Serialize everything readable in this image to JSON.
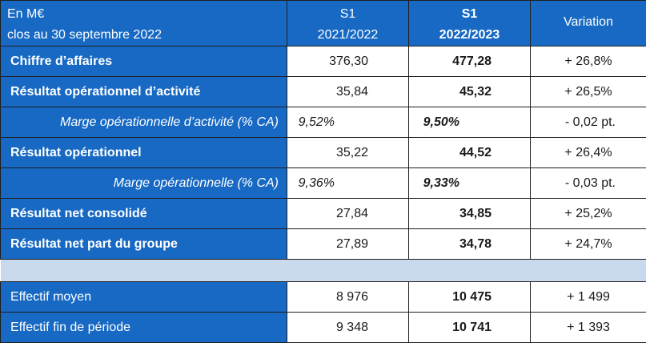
{
  "header": {
    "label_line1": "En M€",
    "label_line2": "clos au 30 septembre 2022",
    "col1_line1": "S1",
    "col1_line2": "2021/2022",
    "col2_line1": "S1",
    "col2_line2": "2022/2023",
    "col3": "Variation"
  },
  "rows": [
    {
      "label": "Chiffre d’affaires",
      "v1": "376,30",
      "v2": "477,28",
      "var": "+ 26,8%"
    },
    {
      "label": "Résultat opérationnel d’activité",
      "v1": "35,84",
      "v2": "45,32",
      "var": "+ 26,5%"
    },
    {
      "label": "Marge opérationnelle d’activité (% CA)",
      "v1": "9,52%",
      "v2": "9,50%",
      "var": "- 0,02 pt."
    },
    {
      "label": "Résultat opérationnel",
      "v1": "35,22",
      "v2": "44,52",
      "var": "+ 26,4%"
    },
    {
      "label": "Marge opérationnelle (% CA)",
      "v1": "9,36%",
      "v2": "9,33%",
      "var": "- 0,03 pt."
    },
    {
      "label": "Résultat net consolidé",
      "v1": "27,84",
      "v2": "34,85",
      "var": "+ 25,2%"
    },
    {
      "label": "Résultat net part du groupe",
      "v1": "27,89",
      "v2": "34,78",
      "var": "+ 24,7%"
    }
  ],
  "staff": [
    {
      "label": "Effectif moyen",
      "v1": "8 976",
      "v2": "10 475",
      "var": "+ 1 499"
    },
    {
      "label": "Effectif fin de période",
      "v1": "9 348",
      "v2": "10 741",
      "var": "+ 1 393"
    }
  ],
  "colors": {
    "header_blue": "#1769c3",
    "separator": "#c9d9ee"
  }
}
